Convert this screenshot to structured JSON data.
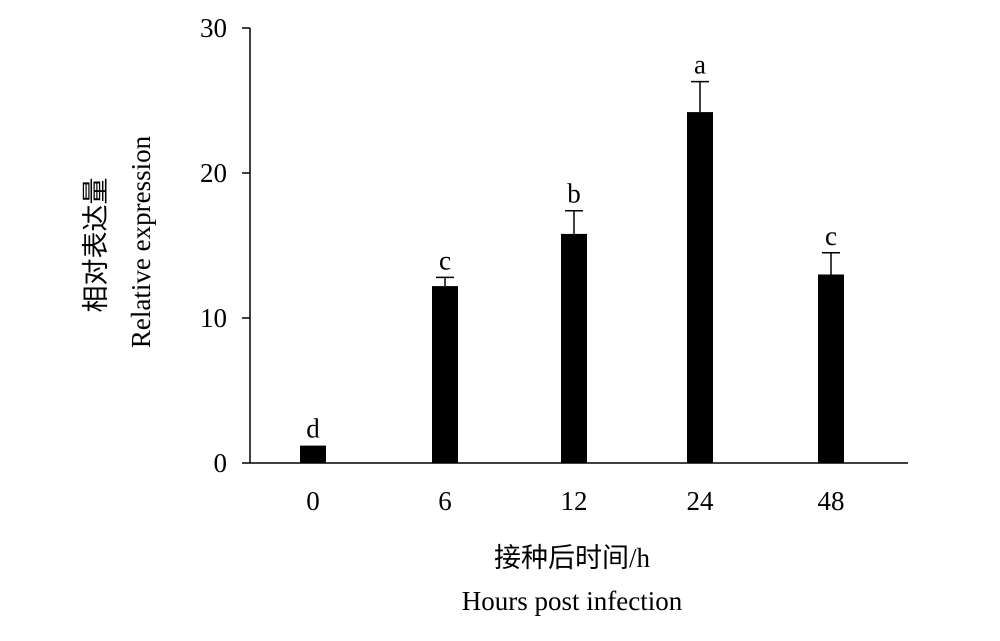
{
  "chart_data": {
    "type": "bar",
    "categories": [
      "0",
      "6",
      "12",
      "24",
      "48"
    ],
    "values": [
      1.2,
      12.2,
      15.8,
      24.2,
      13.0
    ],
    "error": [
      0.0,
      0.6,
      1.6,
      2.1,
      1.5
    ],
    "significance": [
      "d",
      "c",
      "b",
      "a",
      "c"
    ],
    "xlabel": "接种后时间/h",
    "xlabel_en": "Hours post infection",
    "ylabel": "相对表达量",
    "ylabel_en": "Relative expression",
    "ylim": [
      0,
      30
    ],
    "yticks": [
      0,
      10,
      20,
      30
    ],
    "grid": false,
    "legend": "none",
    "bar_color": "#000000"
  }
}
